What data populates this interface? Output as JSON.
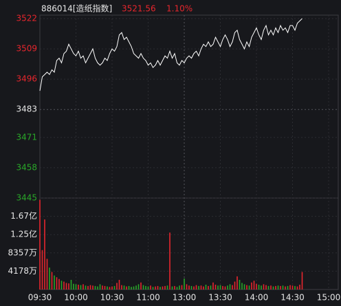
{
  "chart_data": {
    "type": "line",
    "title": "886014[造纸指数]",
    "price": "3521.56",
    "change": "1.10%",
    "x": [
      0,
      2,
      4,
      6,
      8,
      10,
      12,
      14,
      16,
      18,
      20,
      22,
      24,
      26,
      28,
      30,
      32,
      34,
      36,
      38,
      40,
      42,
      44,
      46,
      48,
      50,
      52,
      54,
      56,
      58,
      60,
      62,
      64,
      66,
      68,
      70,
      72,
      74,
      76,
      78,
      80,
      82,
      84,
      86,
      88,
      90,
      92,
      94,
      96,
      98,
      100,
      102,
      104,
      106,
      108,
      110,
      112,
      114,
      116,
      118,
      120,
      122,
      124,
      126,
      128,
      130,
      132,
      134,
      136,
      138,
      140,
      142,
      144,
      146,
      148,
      150,
      152,
      154,
      156,
      158,
      160,
      162,
      164,
      166,
      168,
      170,
      172,
      174,
      176,
      178,
      180,
      182,
      184,
      186,
      188,
      190,
      192,
      194,
      196,
      198,
      200,
      202,
      204,
      206,
      208,
      210,
      212,
      214,
      216,
      218
    ],
    "values": [
      3491,
      3497,
      3498,
      3499,
      3498,
      3500,
      3499,
      3504,
      3505,
      3503,
      3507,
      3508,
      3511,
      3509,
      3507,
      3506,
      3508,
      3505,
      3506,
      3503,
      3505,
      3507,
      3509,
      3505,
      3503,
      3502,
      3503,
      3505,
      3504,
      3507,
      3509,
      3508,
      3510,
      3515,
      3516,
      3513,
      3514,
      3512,
      3510,
      3507,
      3506,
      3505,
      3507,
      3505,
      3504,
      3502,
      3503,
      3501,
      3502,
      3504,
      3502,
      3504,
      3506,
      3505,
      3508,
      3505,
      3507,
      3503,
      3502,
      3504,
      3503,
      3505,
      3506,
      3505,
      3507,
      3508,
      3506,
      3509,
      3511,
      3510,
      3512,
      3510,
      3511,
      3514,
      3512,
      3510,
      3513,
      3515,
      3513,
      3510,
      3512,
      3516,
      3517,
      3513,
      3511,
      3509,
      3512,
      3510,
      3514,
      3516,
      3518,
      3515,
      3513,
      3517,
      3519,
      3515,
      3517,
      3515,
      3518,
      3516,
      3519,
      3517,
      3518,
      3516,
      3519,
      3519,
      3517,
      3520,
      3521,
      3522
    ],
    "volume": [
      20500,
      9000,
      16000,
      7000,
      5000,
      4000,
      3200,
      2800,
      2400,
      2000,
      1800,
      1500,
      1400,
      2200,
      1300,
      1200,
      1100,
      1000,
      1200,
      900,
      800,
      1000,
      900,
      800,
      700,
      1200,
      900,
      800,
      700,
      600,
      700,
      800,
      1500,
      2200,
      1000,
      900,
      700,
      800,
      600,
      700,
      900,
      1200,
      1600,
      1000,
      800,
      700,
      900,
      600,
      700,
      800,
      600,
      700,
      800,
      900,
      13000,
      700,
      800,
      600,
      900,
      1000,
      2500,
      1200,
      900,
      800,
      700,
      1000,
      800,
      900,
      700,
      1100,
      800,
      900,
      1600,
      1100,
      900,
      1000,
      800,
      700,
      900,
      1200,
      1000,
      1800,
      3000,
      2200,
      1500,
      1200,
      1000,
      900,
      1600,
      2000,
      1300,
      1100,
      900,
      1200,
      1000,
      800,
      900,
      700,
      800,
      900,
      800,
      900,
      700,
      800,
      1000,
      900,
      800,
      700,
      1100,
      4000
    ],
    "line_color": "#ffffff",
    "up_color": "#e8262d",
    "down_color": "#29a829",
    "xlim": [
      0,
      240
    ],
    "xticks": [
      {
        "value": 0,
        "label": "09:30"
      },
      {
        "value": 30,
        "label": "10:00"
      },
      {
        "value": 60,
        "label": "10:30"
      },
      {
        "value": 90,
        "label": "11:00"
      },
      {
        "value": 120,
        "label": "13:00"
      },
      {
        "value": 150,
        "label": "13:30"
      },
      {
        "value": 180,
        "label": "14:00"
      },
      {
        "value": 210,
        "label": "14:30"
      },
      {
        "value": 240,
        "label": "15:00"
      }
    ],
    "ylim": [
      3445,
      3522
    ],
    "yticks": [
      3522,
      3509,
      3496,
      3483,
      3471,
      3458,
      3445
    ],
    "y2lim": [
      0,
      20893
    ],
    "y2ticks": [
      {
        "value": 4178,
        "label": "4178万"
      },
      {
        "value": 8357,
        "label": "8357万"
      },
      {
        "value": 12535,
        "label": "1.25亿"
      },
      {
        "value": 16714,
        "label": "1.67亿"
      }
    ],
    "grid": true
  }
}
